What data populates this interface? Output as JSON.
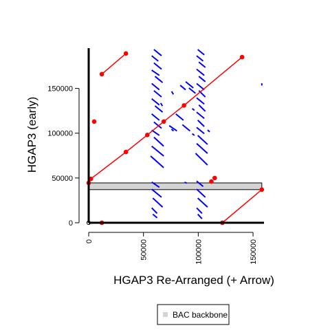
{
  "chart_data": {
    "type": "scatter",
    "title": "",
    "xlabel": "HGAP3 Re-Arranged (+ Arrow)",
    "ylabel": "HGAP3 (early)",
    "xlim": [
      0,
      160000
    ],
    "ylim": [
      0,
      195000
    ],
    "x_ticks": [
      0,
      50000,
      100000,
      150000
    ],
    "x_tick_labels": [
      "0",
      "50000",
      "100000",
      "150000"
    ],
    "y_ticks": [
      0,
      50000,
      100000,
      150000
    ],
    "y_tick_labels": [
      "0",
      "50000",
      "100000",
      "150000"
    ],
    "grid": false,
    "legend_position": "bottom-center",
    "legend": [
      {
        "label": "BAC backbone",
        "color": "#d3d3d3"
      }
    ],
    "colors": {
      "alignment": "#0000ff",
      "scaffold": "#ff0000",
      "backbone_fill": "#d3d3d3",
      "axis": "#000000"
    },
    "backbone_band": {
      "x_range": [
        0,
        158000
      ],
      "y_range": [
        37000,
        44500
      ]
    },
    "scaffold_paths": [
      {
        "name": "",
        "points": [
          [
            0,
            44500
          ],
          [
            2000,
            49000
          ],
          [
            34000,
            79000
          ],
          [
            53500,
            98000
          ],
          [
            68500,
            113000
          ],
          [
            87000,
            131000
          ],
          [
            140000,
            185000
          ]
        ]
      },
      {
        "name": "",
        "points": [
          [
            12000,
            166000
          ],
          [
            34000,
            189000
          ]
        ]
      },
      {
        "name": "",
        "points": [
          [
            122000,
            0
          ],
          [
            158000,
            37000
          ]
        ]
      }
    ],
    "isolated_points": [
      {
        "x": 5000,
        "y": 113000
      },
      {
        "x": 12000,
        "y": 0
      },
      {
        "x": 112000,
        "y": 46000
      },
      {
        "x": 115000,
        "y": 50000
      }
    ],
    "open_points": [
      {
        "x": 0,
        "y": 0
      }
    ],
    "alignment_segments": [
      [
        60000,
        193000,
        66000,
        187000
      ],
      [
        58000,
        186000,
        63000,
        181000
      ],
      [
        60000,
        178000,
        66000,
        172000
      ],
      [
        58000,
        170000,
        64000,
        165000
      ],
      [
        61000,
        163000,
        67000,
        157000
      ],
      [
        58000,
        155000,
        64000,
        149000
      ],
      [
        60000,
        147000,
        66000,
        141000
      ],
      [
        58000,
        138000,
        64000,
        132000
      ],
      [
        61000,
        130000,
        67000,
        124000
      ],
      [
        58000,
        121000,
        64000,
        115000
      ],
      [
        60000,
        112000,
        66000,
        106000
      ],
      [
        58000,
        103000,
        64000,
        98000
      ],
      [
        60000,
        95000,
        68000,
        86000
      ],
      [
        58000,
        85000,
        68000,
        75000
      ],
      [
        57000,
        74000,
        68000,
        62000
      ],
      [
        58000,
        45000,
        64000,
        40000
      ],
      [
        58000,
        37000,
        66000,
        29000
      ],
      [
        59000,
        27000,
        67000,
        18000
      ],
      [
        58000,
        16000,
        62000,
        11000
      ],
      [
        59000,
        9000,
        62000,
        6000
      ],
      [
        100000,
        193000,
        105000,
        188000
      ],
      [
        99000,
        186000,
        104000,
        181000
      ],
      [
        101000,
        179000,
        106000,
        174000
      ],
      [
        99000,
        171000,
        105000,
        165000
      ],
      [
        101000,
        163000,
        106000,
        158000
      ],
      [
        99000,
        155000,
        105000,
        149000
      ],
      [
        101000,
        147000,
        106000,
        141000
      ],
      [
        99000,
        139000,
        105000,
        133000
      ],
      [
        101000,
        131000,
        106000,
        125000
      ],
      [
        99000,
        123000,
        105000,
        117000
      ],
      [
        100000,
        114000,
        105000,
        108000
      ],
      [
        99000,
        106000,
        105000,
        100000
      ],
      [
        100000,
        97000,
        108000,
        88000
      ],
      [
        99000,
        88000,
        108000,
        78000
      ],
      [
        98000,
        77000,
        108000,
        65000
      ],
      [
        99000,
        46000,
        104000,
        41000
      ],
      [
        99000,
        37000,
        106000,
        29000
      ],
      [
        100000,
        27000,
        108000,
        18000
      ],
      [
        99000,
        16000,
        103000,
        11000
      ],
      [
        100000,
        9000,
        103000,
        5000
      ],
      [
        74000,
        108000,
        80000,
        103000
      ],
      [
        80000,
        121000,
        86000,
        115000
      ],
      [
        86000,
        109000,
        92000,
        103000
      ],
      [
        84000,
        153000,
        88000,
        149000
      ],
      [
        89000,
        157000,
        95000,
        151000
      ],
      [
        92000,
        150000,
        97000,
        145000
      ],
      [
        76000,
        146000,
        77000,
        144000
      ],
      [
        66000,
        133000,
        67000,
        131000
      ],
      [
        95000,
        127000,
        96000,
        126000
      ],
      [
        76000,
        104000,
        77000,
        103000
      ],
      [
        95000,
        99000,
        96000,
        98000
      ],
      [
        109000,
        103000,
        110000,
        102000
      ],
      [
        0,
        55000,
        0,
        48000
      ],
      [
        0,
        35000,
        0,
        28000
      ],
      [
        0,
        25000,
        0,
        18000
      ],
      [
        0,
        15000,
        0,
        8000
      ],
      [
        0,
        135000,
        0,
        133000
      ],
      [
        0,
        82000,
        0,
        80000
      ],
      [
        88000,
        45000,
        89000,
        44500
      ],
      [
        158000,
        155000,
        158000,
        154000
      ]
    ]
  }
}
